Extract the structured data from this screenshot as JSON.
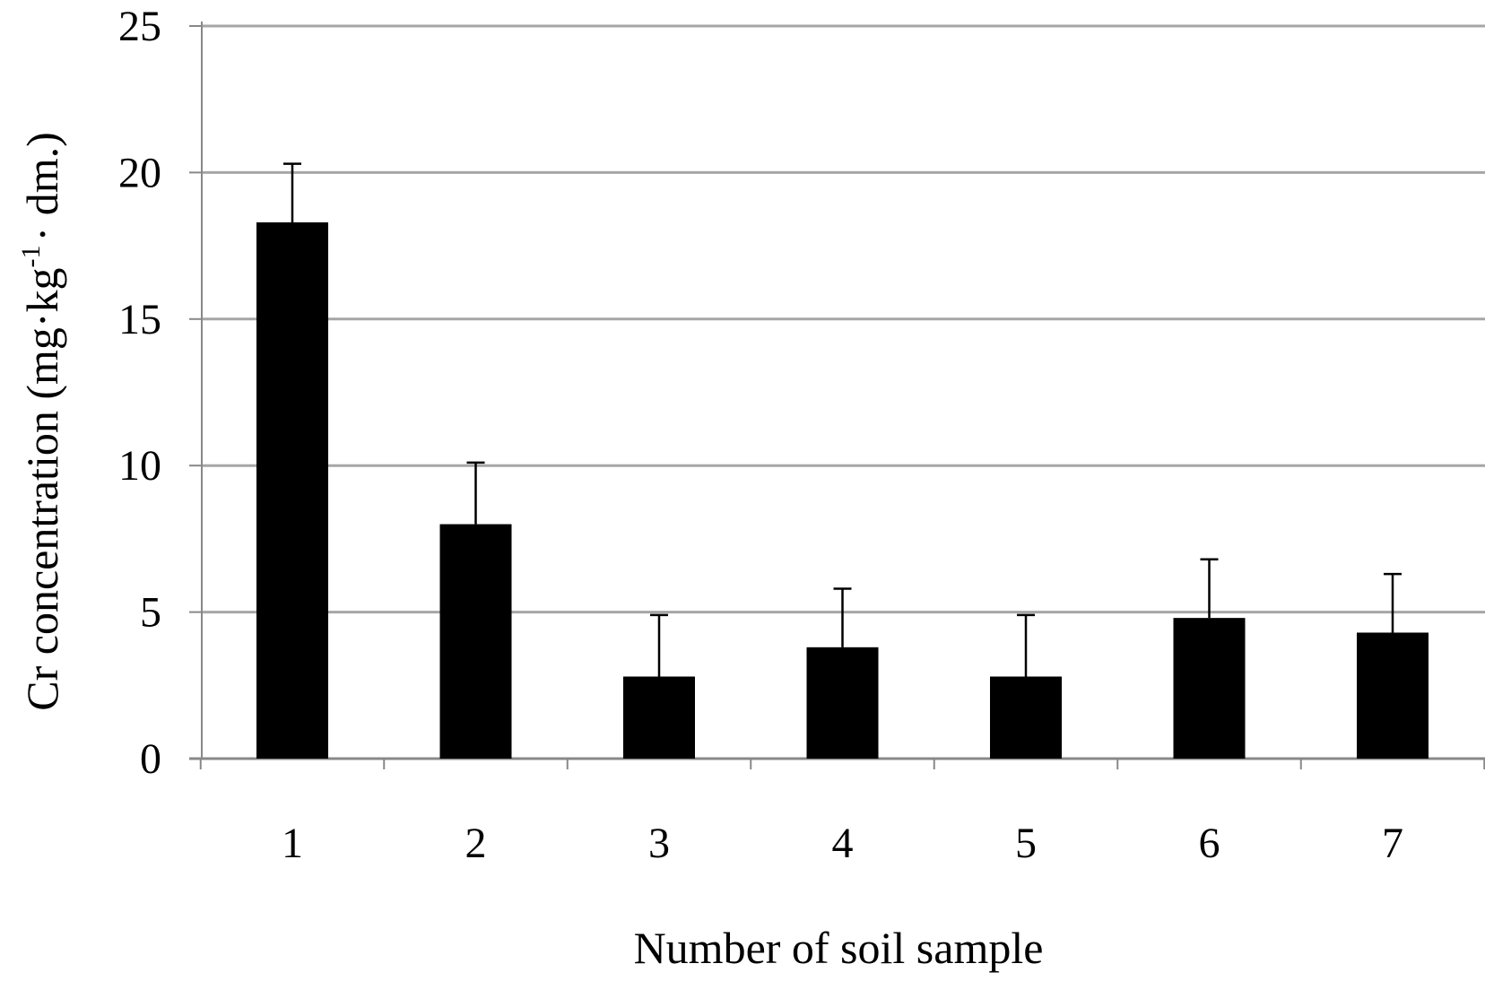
{
  "chart_data": {
    "type": "bar",
    "categories": [
      "1",
      "2",
      "3",
      "4",
      "5",
      "6",
      "7"
    ],
    "values": [
      18.3,
      8.0,
      2.8,
      3.8,
      2.8,
      4.8,
      4.3
    ],
    "error_upper": [
      20.3,
      10.1,
      4.9,
      5.8,
      4.9,
      6.8,
      6.3
    ],
    "ylabel_prefix": "Cr concentration (mg",
    "ylabel_mid": "kg",
    "ylabel_sup": "-1",
    "ylabel_suffix": "dm.)",
    "ylabel_sep": "·",
    "xlabel": "Number of soil sample",
    "ylim": [
      0,
      25
    ],
    "yticks": [
      "0",
      "5",
      "10",
      "15",
      "20",
      "25"
    ],
    "grid": "horizontal",
    "colors": {
      "bar": "#000000",
      "grid": "#a6a6a6",
      "axis": "#888888"
    }
  }
}
